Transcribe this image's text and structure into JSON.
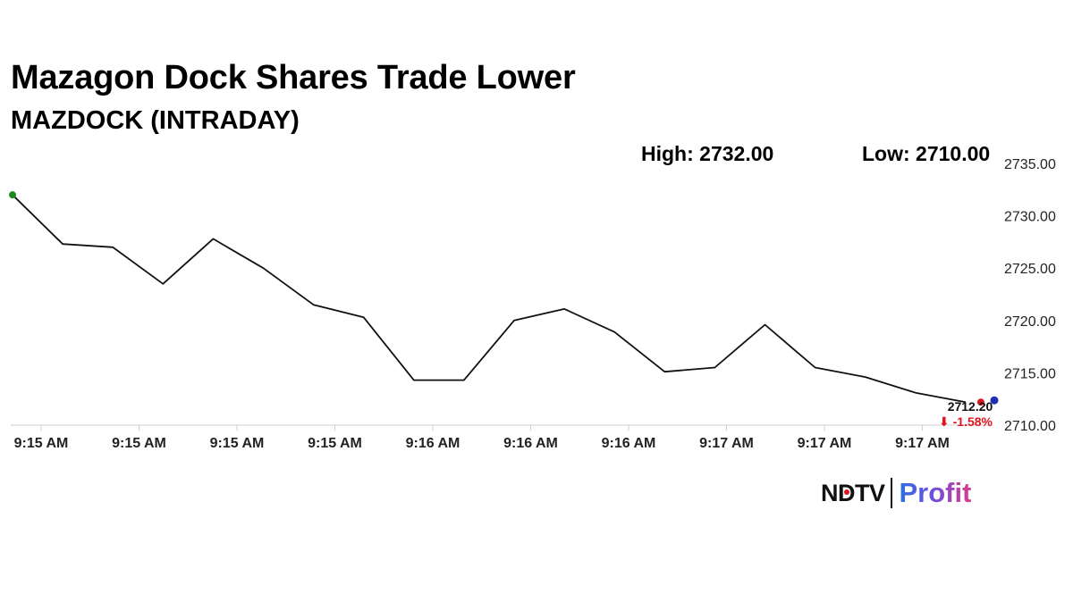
{
  "header": {
    "title": "Mazagon Dock Shares Trade Lower",
    "subtitle": "MAZDOCK (INTRADAY)"
  },
  "stats": {
    "high": "High: 2732.00",
    "low": "Low: 2710.00"
  },
  "last_price": {
    "value": "2712.20",
    "change": "⬇ -1.58%",
    "change_color": "#e0141e"
  },
  "colors": {
    "line": "#111111",
    "start_marker": "#1a8a1a",
    "end_marker": "#e0141e",
    "current_marker": "#1f2fb0",
    "axis": "#cfcfcf"
  },
  "logo": {
    "ndtv": "NDTV",
    "profit": "Profit",
    "dot_color": "#e0141e"
  },
  "chart_data": {
    "type": "line",
    "title": "Mazagon Dock Shares Trade Lower",
    "subtitle": "MAZDOCK (INTRADAY)",
    "xlabel": "",
    "ylabel": "",
    "ylim": [
      2710,
      2735
    ],
    "y_ticks": [
      "2735.00",
      "2730.00",
      "2725.00",
      "2720.00",
      "2715.00",
      "2710.00"
    ],
    "y_tick_values": [
      2735,
      2730,
      2725,
      2720,
      2715,
      2710
    ],
    "x_tick_labels": [
      "9:15 AM",
      "9:15 AM",
      "9:15 AM",
      "9:15 AM",
      "9:16 AM",
      "9:16 AM",
      "9:16 AM",
      "9:17 AM",
      "9:17 AM",
      "9:17 AM"
    ],
    "y_axis_position": "right",
    "grid": false,
    "legend": "none",
    "values": [
      2732.0,
      2727.3,
      2727.0,
      2723.5,
      2727.8,
      2725.0,
      2721.5,
      2720.3,
      2714.3,
      2714.3,
      2720.0,
      2721.1,
      2718.9,
      2715.1,
      2715.5,
      2719.6,
      2715.5,
      2714.6,
      2713.1,
      2712.2
    ],
    "current_marker_value": 2712.2
  }
}
